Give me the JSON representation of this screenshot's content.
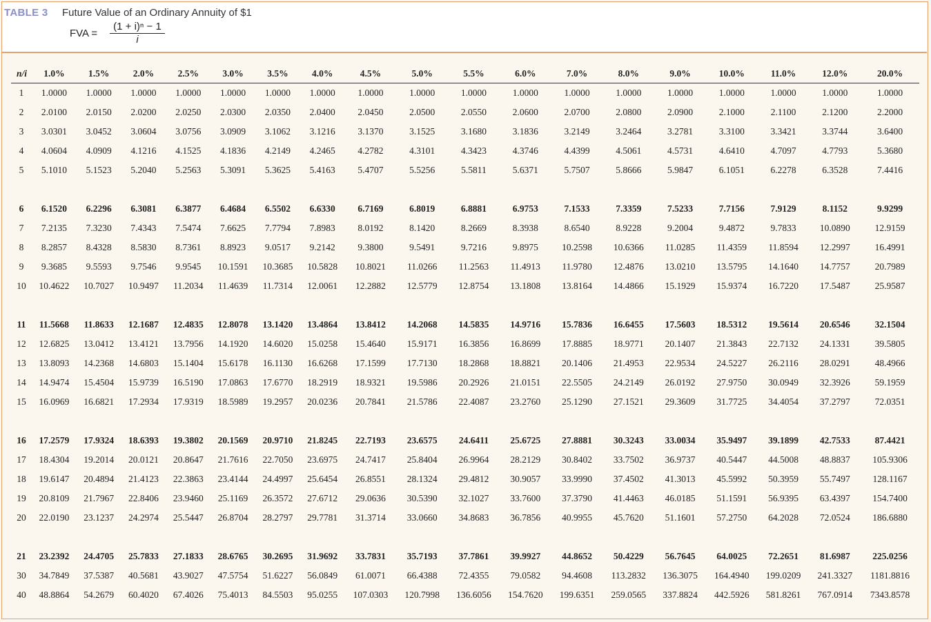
{
  "header": {
    "label": "TABLE 3",
    "title": "Future Value of an Ordinary Annuity of $1",
    "formula_lhs": "FVA =",
    "formula_numerator": "(1 + i)ⁿ − 1",
    "formula_denominator": "i"
  },
  "table": {
    "corner": "n/i",
    "columns": [
      "1.0%",
      "1.5%",
      "2.0%",
      "2.5%",
      "3.0%",
      "3.5%",
      "4.0%",
      "4.5%",
      "5.0%",
      "5.5%",
      "6.0%",
      "7.0%",
      "8.0%",
      "9.0%",
      "10.0%",
      "11.0%",
      "12.0%",
      "20.0%"
    ],
    "groups": [
      [
        {
          "n": "1",
          "v": [
            "1.0000",
            "1.0000",
            "1.0000",
            "1.0000",
            "1.0000",
            "1.0000",
            "1.0000",
            "1.0000",
            "1.0000",
            "1.0000",
            "1.0000",
            "1.0000",
            "1.0000",
            "1.0000",
            "1.0000",
            "1.0000",
            "1.0000",
            "1.0000"
          ]
        },
        {
          "n": "2",
          "v": [
            "2.0100",
            "2.0150",
            "2.0200",
            "2.0250",
            "2.0300",
            "2.0350",
            "2.0400",
            "2.0450",
            "2.0500",
            "2.0550",
            "2.0600",
            "2.0700",
            "2.0800",
            "2.0900",
            "2.1000",
            "2.1100",
            "2.1200",
            "2.2000"
          ]
        },
        {
          "n": "3",
          "v": [
            "3.0301",
            "3.0452",
            "3.0604",
            "3.0756",
            "3.0909",
            "3.1062",
            "3.1216",
            "3.1370",
            "3.1525",
            "3.1680",
            "3.1836",
            "3.2149",
            "3.2464",
            "3.2781",
            "3.3100",
            "3.3421",
            "3.3744",
            "3.6400"
          ]
        },
        {
          "n": "4",
          "v": [
            "4.0604",
            "4.0909",
            "4.1216",
            "4.1525",
            "4.1836",
            "4.2149",
            "4.2465",
            "4.2782",
            "4.3101",
            "4.3423",
            "4.3746",
            "4.4399",
            "4.5061",
            "4.5731",
            "4.6410",
            "4.7097",
            "4.7793",
            "5.3680"
          ]
        },
        {
          "n": "5",
          "v": [
            "5.1010",
            "5.1523",
            "5.2040",
            "5.2563",
            "5.3091",
            "5.3625",
            "5.4163",
            "5.4707",
            "5.5256",
            "5.5811",
            "5.6371",
            "5.7507",
            "5.8666",
            "5.9847",
            "6.1051",
            "6.2278",
            "6.3528",
            "7.4416"
          ]
        }
      ],
      [
        {
          "n": "6",
          "v": [
            "6.1520",
            "6.2296",
            "6.3081",
            "6.3877",
            "6.4684",
            "6.5502",
            "6.6330",
            "6.7169",
            "6.8019",
            "6.8881",
            "6.9753",
            "7.1533",
            "7.3359",
            "7.5233",
            "7.7156",
            "7.9129",
            "8.1152",
            "9.9299"
          ]
        },
        {
          "n": "7",
          "v": [
            "7.2135",
            "7.3230",
            "7.4343",
            "7.5474",
            "7.6625",
            "7.7794",
            "7.8983",
            "8.0192",
            "8.1420",
            "8.2669",
            "8.3938",
            "8.6540",
            "8.9228",
            "9.2004",
            "9.4872",
            "9.7833",
            "10.0890",
            "12.9159"
          ]
        },
        {
          "n": "8",
          "v": [
            "8.2857",
            "8.4328",
            "8.5830",
            "8.7361",
            "8.8923",
            "9.0517",
            "9.2142",
            "9.3800",
            "9.5491",
            "9.7216",
            "9.8975",
            "10.2598",
            "10.6366",
            "11.0285",
            "11.4359",
            "11.8594",
            "12.2997",
            "16.4991"
          ]
        },
        {
          "n": "9",
          "v": [
            "9.3685",
            "9.5593",
            "9.7546",
            "9.9545",
            "10.1591",
            "10.3685",
            "10.5828",
            "10.8021",
            "11.0266",
            "11.2563",
            "11.4913",
            "11.9780",
            "12.4876",
            "13.0210",
            "13.5795",
            "14.1640",
            "14.7757",
            "20.7989"
          ]
        },
        {
          "n": "10",
          "v": [
            "10.4622",
            "10.7027",
            "10.9497",
            "11.2034",
            "11.4639",
            "11.7314",
            "12.0061",
            "12.2882",
            "12.5779",
            "12.8754",
            "13.1808",
            "13.8164",
            "14.4866",
            "15.1929",
            "15.9374",
            "16.7220",
            "17.5487",
            "25.9587"
          ]
        }
      ],
      [
        {
          "n": "11",
          "v": [
            "11.5668",
            "11.8633",
            "12.1687",
            "12.4835",
            "12.8078",
            "13.1420",
            "13.4864",
            "13.8412",
            "14.2068",
            "14.5835",
            "14.9716",
            "15.7836",
            "16.6455",
            "17.5603",
            "18.5312",
            "19.5614",
            "20.6546",
            "32.1504"
          ]
        },
        {
          "n": "12",
          "v": [
            "12.6825",
            "13.0412",
            "13.4121",
            "13.7956",
            "14.1920",
            "14.6020",
            "15.0258",
            "15.4640",
            "15.9171",
            "16.3856",
            "16.8699",
            "17.8885",
            "18.9771",
            "20.1407",
            "21.3843",
            "22.7132",
            "24.1331",
            "39.5805"
          ]
        },
        {
          "n": "13",
          "v": [
            "13.8093",
            "14.2368",
            "14.6803",
            "15.1404",
            "15.6178",
            "16.1130",
            "16.6268",
            "17.1599",
            "17.7130",
            "18.2868",
            "18.8821",
            "20.1406",
            "21.4953",
            "22.9534",
            "24.5227",
            "26.2116",
            "28.0291",
            "48.4966"
          ]
        },
        {
          "n": "14",
          "v": [
            "14.9474",
            "15.4504",
            "15.9739",
            "16.5190",
            "17.0863",
            "17.6770",
            "18.2919",
            "18.9321",
            "19.5986",
            "20.2926",
            "21.0151",
            "22.5505",
            "24.2149",
            "26.0192",
            "27.9750",
            "30.0949",
            "32.3926",
            "59.1959"
          ]
        },
        {
          "n": "15",
          "v": [
            "16.0969",
            "16.6821",
            "17.2934",
            "17.9319",
            "18.5989",
            "19.2957",
            "20.0236",
            "20.7841",
            "21.5786",
            "22.4087",
            "23.2760",
            "25.1290",
            "27.1521",
            "29.3609",
            "31.7725",
            "34.4054",
            "37.2797",
            "72.0351"
          ]
        }
      ],
      [
        {
          "n": "16",
          "v": [
            "17.2579",
            "17.9324",
            "18.6393",
            "19.3802",
            "20.1569",
            "20.9710",
            "21.8245",
            "22.7193",
            "23.6575",
            "24.6411",
            "25.6725",
            "27.8881",
            "30.3243",
            "33.0034",
            "35.9497",
            "39.1899",
            "42.7533",
            "87.4421"
          ]
        },
        {
          "n": "17",
          "v": [
            "18.4304",
            "19.2014",
            "20.0121",
            "20.8647",
            "21.7616",
            "22.7050",
            "23.6975",
            "24.7417",
            "25.8404",
            "26.9964",
            "28.2129",
            "30.8402",
            "33.7502",
            "36.9737",
            "40.5447",
            "44.5008",
            "48.8837",
            "105.9306"
          ]
        },
        {
          "n": "18",
          "v": [
            "19.6147",
            "20.4894",
            "21.4123",
            "22.3863",
            "23.4144",
            "24.4997",
            "25.6454",
            "26.8551",
            "28.1324",
            "29.4812",
            "30.9057",
            "33.9990",
            "37.4502",
            "41.3013",
            "45.5992",
            "50.3959",
            "55.7497",
            "128.1167"
          ]
        },
        {
          "n": "19",
          "v": [
            "20.8109",
            "21.7967",
            "22.8406",
            "23.9460",
            "25.1169",
            "26.3572",
            "27.6712",
            "29.0636",
            "30.5390",
            "32.1027",
            "33.7600",
            "37.3790",
            "41.4463",
            "46.0185",
            "51.1591",
            "56.9395",
            "63.4397",
            "154.7400"
          ]
        },
        {
          "n": "20",
          "v": [
            "22.0190",
            "23.1237",
            "24.2974",
            "25.5447",
            "26.8704",
            "28.2797",
            "29.7781",
            "31.3714",
            "33.0660",
            "34.8683",
            "36.7856",
            "40.9955",
            "45.7620",
            "51.1601",
            "57.2750",
            "64.2028",
            "72.0524",
            "186.6880"
          ]
        }
      ],
      [
        {
          "n": "21",
          "v": [
            "23.2392",
            "24.4705",
            "25.7833",
            "27.1833",
            "28.6765",
            "30.2695",
            "31.9692",
            "33.7831",
            "35.7193",
            "37.7861",
            "39.9927",
            "44.8652",
            "50.4229",
            "56.7645",
            "64.0025",
            "72.2651",
            "81.6987",
            "225.0256"
          ]
        },
        {
          "n": "30",
          "v": [
            "34.7849",
            "37.5387",
            "40.5681",
            "43.9027",
            "47.5754",
            "51.6227",
            "56.0849",
            "61.0071",
            "66.4388",
            "72.4355",
            "79.0582",
            "94.4608",
            "113.2832",
            "136.3075",
            "164.4940",
            "199.0209",
            "241.3327",
            "1181.8816"
          ]
        },
        {
          "n": "40",
          "v": [
            "48.8864",
            "54.2679",
            "60.4020",
            "67.4026",
            "75.4013",
            "84.5503",
            "95.0255",
            "107.0303",
            "120.7998",
            "136.6056",
            "154.7620",
            "199.6351",
            "259.0565",
            "337.8824",
            "442.5926",
            "581.8261",
            "767.0914",
            "7343.8578"
          ]
        }
      ]
    ]
  }
}
